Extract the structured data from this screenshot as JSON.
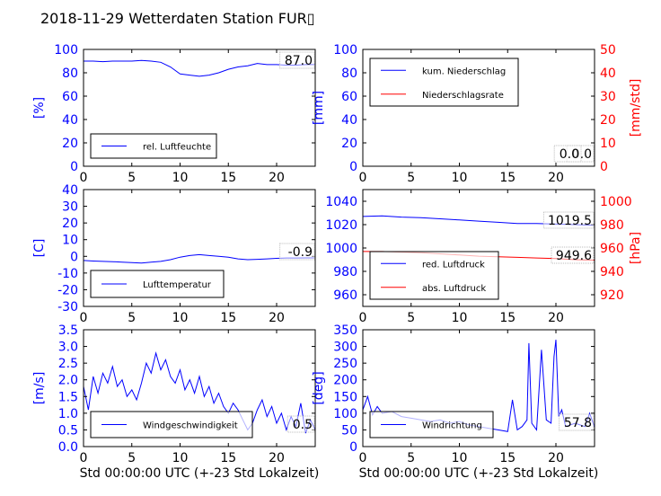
{
  "title": "2018-11-29 Wetterdaten Station FUR▯",
  "x_axis_label": "Std 00:00:00 UTC (+-23 Std Lokalzeit)",
  "colors": {
    "primary": "#0000ff",
    "secondary": "#ff0000",
    "text": "#000000"
  },
  "chart_data": [
    {
      "id": "humidity",
      "type": "line",
      "grid": false,
      "legend_position": "lower-left",
      "ylabel_left": "[%]",
      "xlim": [
        0,
        24
      ],
      "ylim_left": [
        0,
        100
      ],
      "xticks": [
        0,
        5,
        10,
        15,
        20
      ],
      "yticks_left": [
        0,
        20,
        40,
        60,
        80,
        100
      ],
      "value_labels": [
        "87.0"
      ],
      "series": [
        {
          "name": "rel. Luftfeuchte",
          "color": "#0000ff",
          "axis": "left",
          "x": [
            0,
            1,
            2,
            3,
            4,
            5,
            6,
            7,
            8,
            9,
            10,
            11,
            12,
            13,
            14,
            15,
            16,
            17,
            18,
            19,
            20,
            21,
            22,
            23,
            24
          ],
          "y": [
            90,
            90,
            89.5,
            90,
            90,
            90,
            90.5,
            90,
            89,
            85,
            79,
            78,
            77,
            78,
            80,
            83,
            85,
            86,
            88,
            87,
            87,
            86.5,
            86.5,
            87,
            87
          ]
        }
      ]
    },
    {
      "id": "precip",
      "type": "line",
      "grid": false,
      "legend_position": "upper-left",
      "ylabel_left": "[mm]",
      "ylabel_right": "[mm/std]",
      "xlim": [
        0,
        24
      ],
      "ylim_left": [
        0,
        100
      ],
      "ylim_right": [
        0,
        50
      ],
      "xticks": [
        0,
        5,
        10,
        15,
        20
      ],
      "yticks_left": [
        0,
        20,
        40,
        60,
        80,
        100
      ],
      "yticks_right": [
        0,
        10,
        20,
        30,
        40,
        50
      ],
      "value_labels": [
        "0.0",
        "0.0"
      ],
      "series": [
        {
          "name": "kum. Niederschlag",
          "color": "#0000ff",
          "axis": "left",
          "x": [
            0,
            24
          ],
          "y": [
            0,
            0
          ]
        },
        {
          "name": "Niederschlagsrate",
          "color": "#ff0000",
          "axis": "right",
          "x": [
            0,
            24
          ],
          "y": [
            0,
            0
          ]
        }
      ]
    },
    {
      "id": "temperature",
      "type": "line",
      "grid": false,
      "legend_position": "lower-left",
      "ylabel_left": "[C]",
      "xlim": [
        0,
        24
      ],
      "ylim_left": [
        -30,
        40
      ],
      "xticks": [
        0,
        5,
        10,
        15,
        20
      ],
      "yticks_left": [
        -30,
        -20,
        -10,
        0,
        10,
        20,
        30,
        40
      ],
      "value_labels": [
        "-0.9"
      ],
      "series": [
        {
          "name": "Lufttemperatur",
          "color": "#0000ff",
          "axis": "left",
          "x": [
            0,
            1,
            2,
            3,
            4,
            5,
            6,
            7,
            8,
            9,
            10,
            11,
            12,
            13,
            14,
            15,
            16,
            17,
            18,
            19,
            20,
            21,
            22,
            23,
            24
          ],
          "y": [
            -2.5,
            -2.8,
            -3,
            -3.2,
            -3.5,
            -3.8,
            -4,
            -3.5,
            -3,
            -2,
            -0.5,
            0.5,
            1,
            0.5,
            0,
            -0.5,
            -1.5,
            -2,
            -1.8,
            -1.5,
            -1.2,
            -1,
            -1,
            -0.9,
            -0.9
          ]
        }
      ]
    },
    {
      "id": "pressure",
      "type": "line",
      "grid": false,
      "legend_position": "lower-left",
      "ylabel_right": "[hPa]",
      "xlim": [
        0,
        24
      ],
      "ylim_left": [
        950,
        1050
      ],
      "ylim_right": [
        910,
        1010
      ],
      "xticks": [
        0,
        5,
        10,
        15,
        20
      ],
      "yticks_left": [
        960,
        980,
        1000,
        1020,
        1040
      ],
      "yticks_right": [
        920,
        940,
        960,
        980,
        1000
      ],
      "value_labels": [
        "1019.5",
        "949.6"
      ],
      "series": [
        {
          "name": "red. Luftdruck",
          "color": "#0000ff",
          "axis": "left",
          "x": [
            0,
            2,
            4,
            6,
            8,
            10,
            12,
            14,
            16,
            18,
            20,
            22,
            24
          ],
          "y": [
            1027,
            1027.5,
            1026.5,
            1026,
            1025,
            1024,
            1023,
            1022,
            1021,
            1021,
            1020.5,
            1020,
            1019.5
          ]
        },
        {
          "name": "abs. Luftdruck",
          "color": "#ff0000",
          "axis": "right",
          "x": [
            0,
            2,
            4,
            6,
            8,
            10,
            12,
            14,
            16,
            18,
            20,
            22,
            24
          ],
          "y": [
            957,
            957,
            956.5,
            956,
            955,
            954,
            953,
            952.5,
            952,
            951.5,
            951,
            950,
            949.6
          ]
        }
      ]
    },
    {
      "id": "wind_speed",
      "type": "line",
      "grid": false,
      "legend_position": "lower-left",
      "ylabel_left": "[m/s]",
      "xlim": [
        0,
        24
      ],
      "ylim_left": [
        0,
        3.5
      ],
      "xticks": [
        0,
        5,
        10,
        15,
        20
      ],
      "yticks_left": [
        0.0,
        0.5,
        1.0,
        1.5,
        2.0,
        2.5,
        3.0,
        3.5
      ],
      "value_labels": [
        "0.5"
      ],
      "series": [
        {
          "name": "Windgeschwindigkeit",
          "color": "#0000ff",
          "axis": "left",
          "x": [
            0,
            0.5,
            1,
            1.5,
            2,
            2.5,
            3,
            3.5,
            4,
            4.5,
            5,
            5.5,
            6,
            6.5,
            7,
            7.5,
            8,
            8.5,
            9,
            9.5,
            10,
            10.5,
            11,
            11.5,
            12,
            12.5,
            13,
            13.5,
            14,
            14.5,
            15,
            15.5,
            16,
            16.5,
            17,
            17.5,
            18,
            18.5,
            19,
            19.5,
            20,
            20.5,
            21,
            21.5,
            22,
            22.5,
            23,
            23.5,
            24
          ],
          "y": [
            1.8,
            1.1,
            2.1,
            1.6,
            2.2,
            1.9,
            2.4,
            1.8,
            2.0,
            1.5,
            1.7,
            1.4,
            1.9,
            2.5,
            2.2,
            2.8,
            2.3,
            2.6,
            2.1,
            1.9,
            2.3,
            1.7,
            2.0,
            1.6,
            2.1,
            1.5,
            1.8,
            1.3,
            1.6,
            1.2,
            1.0,
            1.3,
            1.1,
            0.8,
            0.5,
            0.7,
            1.1,
            1.4,
            0.9,
            1.2,
            0.7,
            1.0,
            0.5,
            0.9,
            0.6,
            1.3,
            0.4,
            0.8,
            0.5
          ]
        }
      ]
    },
    {
      "id": "wind_direction",
      "type": "line",
      "grid": false,
      "legend_position": "lower-left",
      "ylabel_left": "[deg]",
      "xlim": [
        0,
        24
      ],
      "ylim_left": [
        0,
        350
      ],
      "xticks": [
        0,
        5,
        10,
        15,
        20
      ],
      "yticks_left": [
        0,
        50,
        100,
        150,
        200,
        250,
        300,
        350
      ],
      "value_labels": [
        "57.8"
      ],
      "series": [
        {
          "name": "Windrichtung",
          "color": "#0000ff",
          "axis": "left",
          "x": [
            0,
            0.5,
            1,
            1.5,
            2,
            3,
            4,
            5,
            6,
            7,
            8,
            9,
            10,
            11,
            12,
            13,
            14,
            15,
            15.5,
            16,
            16.5,
            17,
            17.2,
            17.5,
            18,
            18.5,
            19,
            19.5,
            19.8,
            20,
            20.3,
            20.6,
            21,
            22,
            23,
            23.5,
            24
          ],
          "y": [
            110,
            150,
            95,
            120,
            100,
            105,
            90,
            85,
            80,
            75,
            80,
            70,
            75,
            65,
            60,
            55,
            50,
            45,
            140,
            50,
            60,
            80,
            310,
            70,
            50,
            290,
            80,
            70,
            270,
            320,
            90,
            110,
            60,
            70,
            60,
            100,
            58
          ]
        }
      ]
    }
  ]
}
